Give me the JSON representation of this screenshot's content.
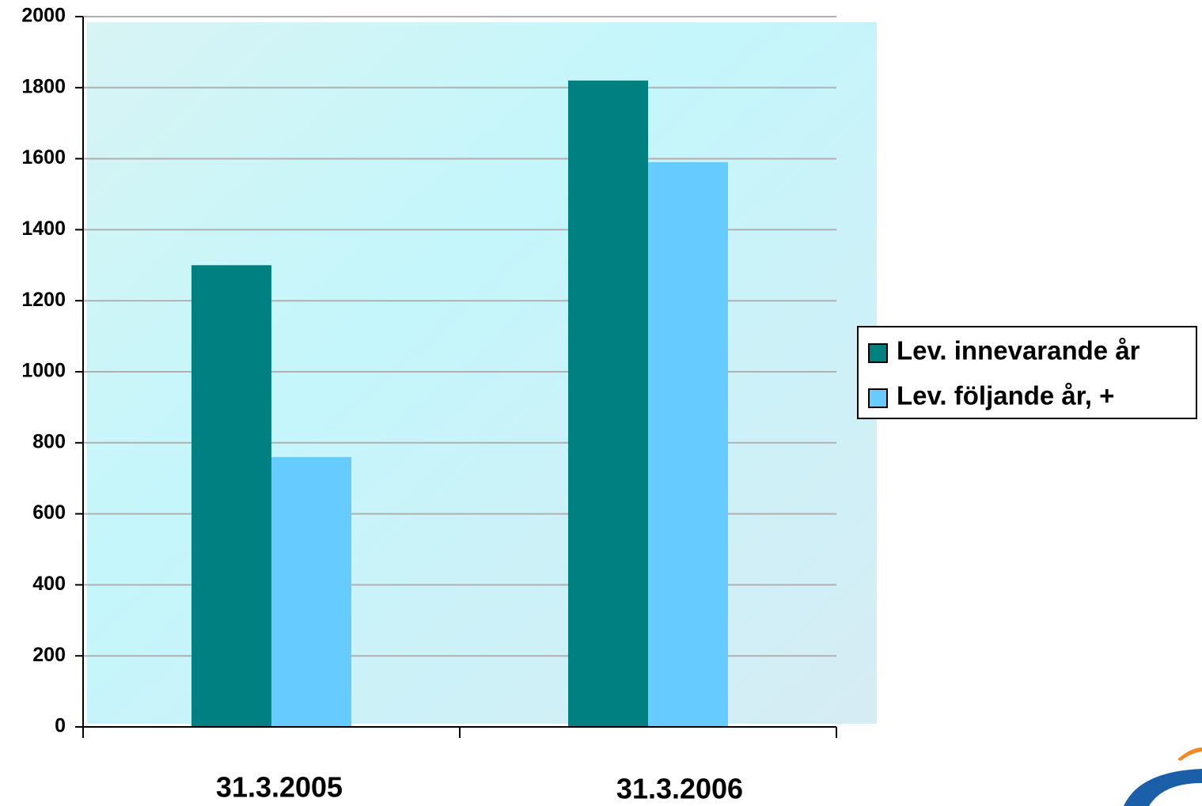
{
  "chart_data": {
    "type": "bar",
    "categories": [
      "31.3.2005",
      "31.3.2006"
    ],
    "series": [
      {
        "name": "Lev. innevarande år",
        "color": "#008080",
        "values": [
          1300,
          1820
        ]
      },
      {
        "name": "Lev. följande år, +",
        "color": "#66ccff",
        "values": [
          760,
          1590
        ]
      }
    ],
    "ylim": [
      0,
      2000
    ],
    "yticks": [
      0,
      200,
      400,
      600,
      800,
      1000,
      1200,
      1400,
      1600,
      1800,
      2000
    ],
    "grid": true,
    "legend": "right"
  }
}
